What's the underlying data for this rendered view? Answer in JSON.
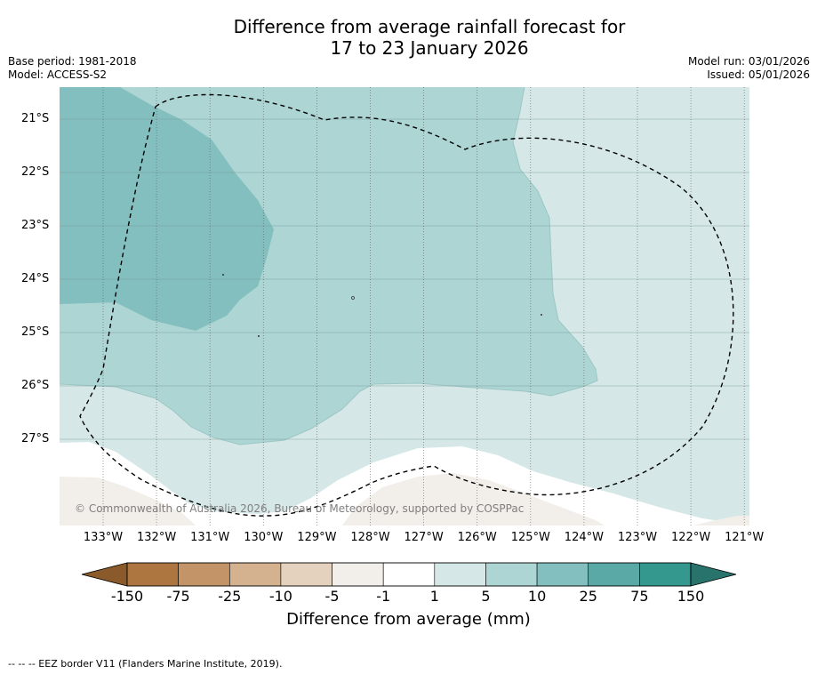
{
  "title": {
    "line1": "Difference from average rainfall forecast for",
    "line2": "17 to 23 January 2026"
  },
  "meta": {
    "base_period": "Base period: 1981-2018",
    "model": "Model: ACCESS-S2",
    "model_run": "Model run: 03/01/2026",
    "issued": "Issued: 05/01/2026"
  },
  "map": {
    "latitude_labels": [
      "21°S",
      "22°S",
      "23°S",
      "24°S",
      "25°S",
      "26°S",
      "27°S"
    ],
    "longitude_labels": [
      "133°W",
      "132°W",
      "131°W",
      "130°W",
      "129°W",
      "128°W",
      "127°W",
      "126°W",
      "125°W",
      "124°W",
      "123°W",
      "122°W",
      "121°W"
    ],
    "copyright": "© Commonwealth of Australia 2026, Bureau of Meteorology, supported by COSPPac",
    "colors": {
      "class_1_5": "#d5e8e7",
      "class_5_10": "#acd5d4",
      "class_10_25": "#84bfbf",
      "class_neg5_neg1": "#f2efea",
      "no_change": "#ffffff"
    }
  },
  "colorbar": {
    "tick_labels": [
      "-150",
      "-75",
      "-25",
      "-10",
      "-5",
      "-1",
      "1",
      "5",
      "10",
      "25",
      "75",
      "150"
    ],
    "label": "Difference from average (mm)",
    "colors": [
      "#8a5a2b",
      "#ad7641",
      "#c29468",
      "#d4b290",
      "#e5d2be",
      "#f2efea",
      "#ffffff",
      "#d5e8e7",
      "#acd5d4",
      "#84bfbf",
      "#5aa9a7",
      "#35988f",
      "#28736c"
    ]
  },
  "footer": {
    "legend_note": "-- -- -- EEZ border V11 (Flanders Marine Institute, 2019)."
  }
}
